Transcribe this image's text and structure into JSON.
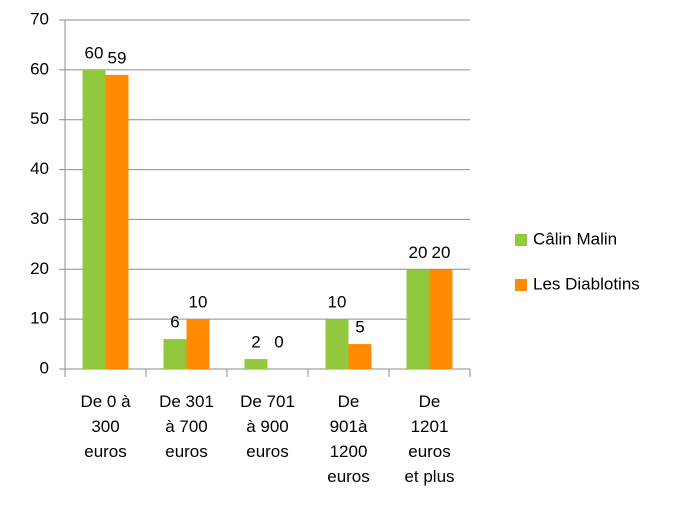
{
  "chart_data": {
    "type": "bar",
    "categories": [
      "De 0 à\n300\neuros",
      "De 301\nà 700\neuros",
      "De 701\nà 900\neuros",
      "De\n901à\n1200\neuros",
      "De\n1201\neuros\net plus"
    ],
    "series": [
      {
        "name": "Câlin Malin",
        "color": "#92c83e",
        "values": [
          60,
          6,
          2,
          10,
          20
        ]
      },
      {
        "name": "Les Diablotins",
        "color": "#ff8c00",
        "values": [
          59,
          10,
          0,
          5,
          20
        ]
      }
    ],
    "ylim": [
      0,
      70
    ],
    "yticks": [
      0,
      10,
      20,
      30,
      40,
      50,
      60,
      70
    ],
    "grid": true,
    "legend": "right"
  }
}
